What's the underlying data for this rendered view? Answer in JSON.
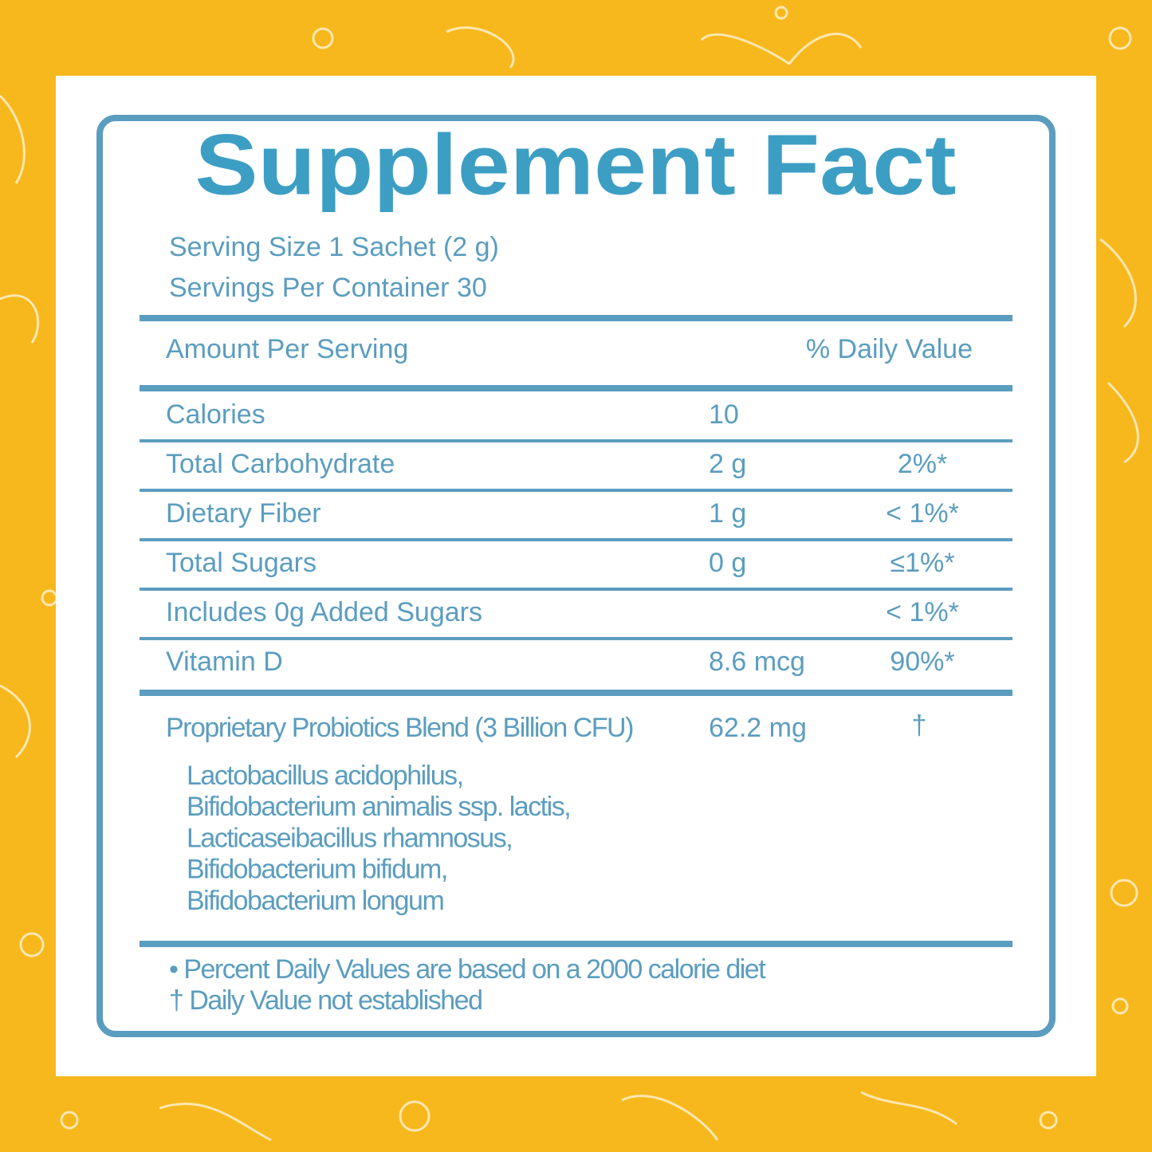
{
  "header": {
    "title": "Supplement Fact",
    "serving_size": "Serving Size 1 Sachet (2 g)",
    "servings_per_container": "Servings Per Container 30"
  },
  "table": {
    "columns": [
      "Amount Per Serving",
      "% Daily Value"
    ],
    "rows": [
      {
        "name": "Calories",
        "amount": "10"
      },
      {
        "name": "Total Carbohydrate",
        "amount": "2 g",
        "daily_value": "2%*"
      },
      {
        "name": "Dietary Fiber",
        "amount": "1 g",
        "daily_value": "< 1%*"
      },
      {
        "name": "Total Sugars",
        "amount": "0 g",
        "daily_value": "≤1%*"
      },
      {
        "name": "Includes 0g Added Sugars",
        "daily_value": "< 1%*"
      },
      {
        "name": "Vitamin D",
        "amount": "8.6 mcg",
        "daily_value": "90%*"
      }
    ]
  },
  "blend": {
    "name": "Proprietary Probiotics Blend (3 Billion CFU)",
    "amount": "62.2 mg",
    "daily_value": "†",
    "strains": [
      "Lactobacillus acidophilus,",
      "Bifidobacterium animalis ssp. lactis,",
      "Lacticaseibacillus rhamnosus,",
      "Bifidobacterium bifidum,",
      "Bifidobacterium longum"
    ]
  },
  "footnotes": [
    "• Percent Daily Values are based on a 2000 calorie diet",
    "† Daily Value not established"
  ]
}
